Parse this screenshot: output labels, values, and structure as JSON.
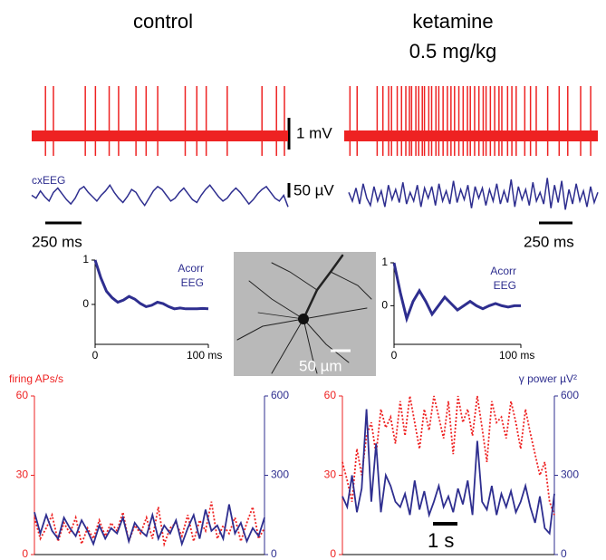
{
  "chart_data": [
    {
      "type": "spikes",
      "title": "control",
      "color": "#ee2222",
      "xlim": [
        0,
        1770
      ],
      "spike_times": [
        95,
        150,
        370,
        440,
        535,
        600,
        720,
        790,
        870,
        1060,
        1140,
        1205,
        1350,
        1590,
        1690,
        1745
      ]
    },
    {
      "type": "spikes",
      "title": "ketamine",
      "subtitle": "0.5 mg/kg",
      "color": "#ee2222",
      "xlim": [
        0,
        1770
      ],
      "spike_times": [
        40,
        90,
        230,
        270,
        310,
        330,
        370,
        400,
        430,
        455,
        470,
        500,
        520,
        545,
        560,
        590,
        610,
        640,
        660,
        690,
        720,
        745,
        770,
        800,
        830,
        860,
        880,
        910,
        940,
        970,
        990,
        1020,
        1050,
        1080,
        1100,
        1140,
        1170,
        1200,
        1260,
        1300,
        1340,
        1420,
        1500,
        1560,
        1650,
        1720
      ]
    },
    {
      "type": "eeg",
      "label": "cxEEG",
      "color": "#2e2e8f",
      "ylim": [
        -80,
        80
      ],
      "values": [
        0,
        -10,
        15,
        -5,
        -20,
        10,
        25,
        5,
        -15,
        -30,
        -10,
        20,
        30,
        10,
        -5,
        -20,
        0,
        15,
        35,
        10,
        -10,
        -25,
        -5,
        20,
        10,
        -15,
        -35,
        -10,
        15,
        30,
        20,
        0,
        -20,
        -10,
        10,
        25,
        5,
        -15,
        -25,
        0,
        20,
        35,
        15,
        -5,
        -20,
        -10,
        10,
        25,
        10,
        -10,
        -30,
        -15,
        5,
        20,
        30,
        10,
        -10,
        -20,
        0,
        -40
      ]
    },
    {
      "type": "eeg",
      "color": "#2e2e8f",
      "ylim": [
        -80,
        80
      ],
      "values": [
        10,
        -20,
        25,
        -30,
        40,
        -10,
        -35,
        30,
        -20,
        15,
        -40,
        35,
        -15,
        20,
        -25,
        45,
        -30,
        10,
        -20,
        35,
        -40,
        25,
        -10,
        30,
        -35,
        40,
        -20,
        15,
        -30,
        50,
        -25,
        20,
        -15,
        35,
        -45,
        30,
        -10,
        25,
        -35,
        20,
        -20,
        40,
        -30,
        15,
        -25,
        55,
        -40,
        30,
        -15,
        20,
        -35,
        45,
        -20,
        10,
        -30,
        60,
        -45,
        35,
        -25,
        50,
        -50,
        20,
        -30,
        40,
        -20,
        15,
        -40,
        30,
        -25,
        10
      ]
    },
    {
      "type": "line",
      "color": "#2e2e8f",
      "label_lines": [
        "Acorr",
        "EEG"
      ],
      "xlim": [
        0,
        100
      ],
      "ylim": [
        -0.9,
        1
      ],
      "xticks": [
        0,
        {
          "value": 100,
          "label": "100 ms"
        }
      ],
      "yticks": [
        0,
        1
      ],
      "x": [
        0,
        5,
        10,
        15,
        20,
        25,
        30,
        35,
        40,
        45,
        50,
        55,
        60,
        65,
        70,
        75,
        80,
        85,
        90,
        95,
        100
      ],
      "values": [
        1,
        0.6,
        0.3,
        0.15,
        0.05,
        0.1,
        0.18,
        0.12,
        0.02,
        -0.05,
        -0.02,
        0.05,
        0.02,
        -0.05,
        -0.1,
        -0.08,
        -0.1,
        -0.1,
        -0.1,
        -0.09,
        -0.1
      ]
    },
    {
      "type": "line",
      "color": "#2e2e8f",
      "label_lines": [
        "Acorr",
        "EEG"
      ],
      "xlim": [
        0,
        100
      ],
      "ylim": [
        -0.9,
        1
      ],
      "xticks": [
        0,
        {
          "value": 100,
          "label": "100 ms"
        }
      ],
      "yticks": [
        0,
        1
      ],
      "x": [
        0,
        5,
        10,
        15,
        20,
        25,
        30,
        35,
        40,
        45,
        50,
        55,
        60,
        65,
        70,
        75,
        80,
        85,
        90,
        95,
        100
      ],
      "values": [
        1,
        0.3,
        -0.3,
        0.1,
        0.35,
        0.1,
        -0.2,
        0,
        0.2,
        0.05,
        -0.1,
        0,
        0.1,
        0,
        -0.07,
        0,
        0.05,
        0,
        -0.03,
        0,
        0
      ]
    },
    {
      "type": "dual",
      "ylabel": "firing APs/s",
      "ylim": [
        0,
        60
      ],
      "yticks": [
        0,
        30,
        60
      ],
      "y2lim": [
        0,
        600
      ],
      "y2ticks": [
        0,
        300,
        600
      ],
      "series": [
        {
          "color": "#ee2222",
          "style": "dotted",
          "values": [
            14,
            6,
            10,
            15,
            5,
            12,
            8,
            14,
            4,
            10,
            6,
            13,
            7,
            12,
            9,
            16,
            5,
            11,
            8,
            14,
            6,
            18,
            4,
            10,
            12,
            7,
            15,
            5,
            13,
            9,
            20,
            6,
            11,
            8,
            14,
            5,
            12,
            18,
            6,
            10
          ]
        },
        {
          "color": "#2e2e8f",
          "axis": "y2",
          "values": [
            160,
            80,
            150,
            90,
            60,
            140,
            100,
            70,
            130,
            90,
            40,
            110,
            60,
            100,
            80,
            140,
            50,
            120,
            90,
            70,
            150,
            60,
            110,
            80,
            130,
            40,
            100,
            150,
            60,
            170,
            90,
            110,
            60,
            190,
            80,
            120,
            50,
            100,
            70,
            140
          ]
        }
      ]
    },
    {
      "type": "dual",
      "y2label": "γ power µV²",
      "ylim": [
        0,
        60
      ],
      "yticks": [
        0,
        30,
        60
      ],
      "y2lim": [
        0,
        600
      ],
      "y2ticks": [
        0,
        300,
        600
      ],
      "series": [
        {
          "color": "#ee2222",
          "style": "dotted",
          "values": [
            35,
            28,
            20,
            40,
            30,
            45,
            50,
            38,
            55,
            48,
            52,
            42,
            58,
            45,
            60,
            50,
            40,
            55,
            47,
            60,
            52,
            44,
            58,
            38,
            60,
            50,
            55,
            45,
            60,
            48,
            35,
            58,
            50,
            52,
            44,
            58,
            50,
            40,
            55,
            46,
            38,
            30,
            35,
            20,
            15
          ]
        },
        {
          "color": "#2e2e8f",
          "axis": "y2",
          "values": [
            220,
            180,
            300,
            160,
            250,
            550,
            200,
            420,
            160,
            300,
            260,
            200,
            180,
            230,
            150,
            280,
            170,
            240,
            150,
            200,
            260,
            180,
            220,
            160,
            250,
            190,
            280,
            150,
            430,
            200,
            170,
            260,
            150,
            230,
            180,
            240,
            160,
            200,
            260,
            180,
            120,
            220,
            100,
            80,
            230
          ]
        }
      ]
    }
  ],
  "scale_bars": [
    "1 mV",
    "50 µV",
    "250 ms",
    "250 ms",
    "50 µm",
    "1 s"
  ]
}
